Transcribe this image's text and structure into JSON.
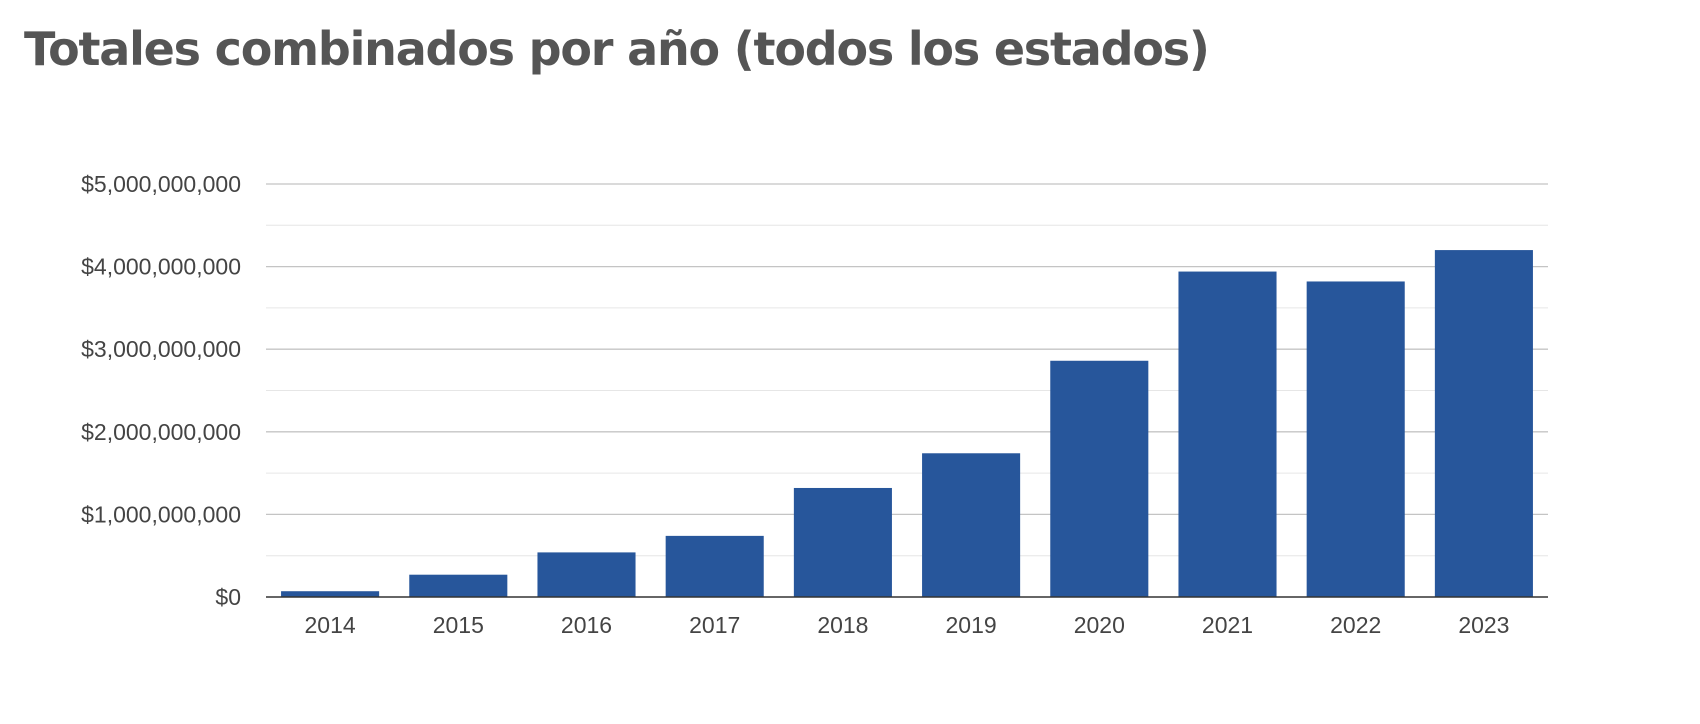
{
  "chart_data": {
    "type": "bar",
    "title": "Totales combinados por año (todos los estados)",
    "categories": [
      "2014",
      "2015",
      "2016",
      "2017",
      "2018",
      "2019",
      "2020",
      "2021",
      "2022",
      "2023"
    ],
    "values": [
      70000000,
      270000000,
      540000000,
      740000000,
      1320000000,
      1740000000,
      2860000000,
      3940000000,
      3820000000,
      4200000000
    ],
    "ylim": [
      0,
      5000000000
    ],
    "yticks": [
      0,
      1000000000,
      2000000000,
      3000000000,
      4000000000,
      5000000000
    ],
    "ytick_labels": [
      "$0",
      "$1,000,000,000",
      "$2,000,000,000",
      "$3,000,000,000",
      "$4,000,000,000",
      "$5,000,000,000"
    ],
    "xlabel": "",
    "ylabel": "",
    "grid": true,
    "legend": "none",
    "colors": {
      "bar": "#27569b",
      "gridline": "#c4c4c4",
      "minor_gridline": "#e6e6e6",
      "axis": "#333333"
    }
  }
}
